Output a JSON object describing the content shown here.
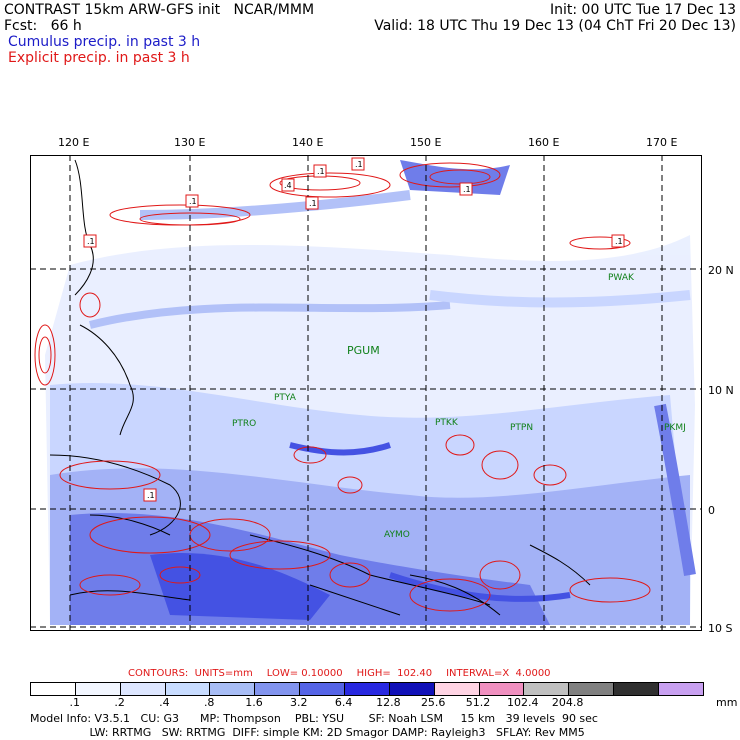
{
  "header": {
    "line1_left": "CONTRAST 15km ARW-GFS init   NCAR/MMM",
    "line1_right": "Init: 00 UTC Tue 17 Dec 13",
    "line2_left": "Fcst:   66 h",
    "line2_right": "Valid: 18 UTC Thu 19 Dec 13 (04 ChT Fri 20 Dec 13)",
    "line3": "Cumulus precip. in past 3 h",
    "line4": "Explicit precip. in past 3 h"
  },
  "lon_labels": [
    "120 E",
    "130 E",
    "140 E",
    "150 E",
    "160 E",
    "170 E"
  ],
  "lat_labels": [
    "20 N",
    "10 N",
    "0",
    "10 S"
  ],
  "stations": [
    "PWAK",
    "PGUM",
    "PTYA",
    "PTRO",
    "PTKK",
    "PTPN",
    "PKMJ",
    "AYMO"
  ],
  "contours": {
    "c1": "CONTOURS:  UNITS=mm",
    "c2": "LOW= 0.10000",
    "c3": "HIGH=  102.40",
    "c4": "INTERVAL=X  4.0000"
  },
  "colorbar": {
    "labels": [
      ".1",
      ".2",
      ".4",
      ".8",
      "1.6",
      "3.2",
      "6.4",
      "12.8",
      "25.6",
      "51.2",
      "102.4",
      "204.8"
    ],
    "unit": "mm",
    "colors": [
      "#ffffff",
      "#f2f6ff",
      "#dde6ff",
      "#c8dcff",
      "#a8bdf5",
      "#8294ee",
      "#5564e6",
      "#2828e0",
      "#1010b8",
      "#ffd4e4",
      "#f090c0",
      "#c0c0c0",
      "#808080",
      "#303030",
      "#c8a0f0"
    ]
  },
  "footer": {
    "line1": "Model Info: V3.5.1   CU: G3      MP: Thompson    PBL: YSU       SF: Noah LSM     15 km   39 levels  90 sec",
    "line2": "                 LW: RRTMG   SW: RRTMG  DIFF: simple KM: 2D Smagor DAMP: Rayleigh3   SFLAY: Rev MM5"
  },
  "map_labels": [
    ".1",
    ".4",
    ".1",
    ".1",
    ".1",
    ".1",
    ".1",
    ".1",
    ".1"
  ]
}
